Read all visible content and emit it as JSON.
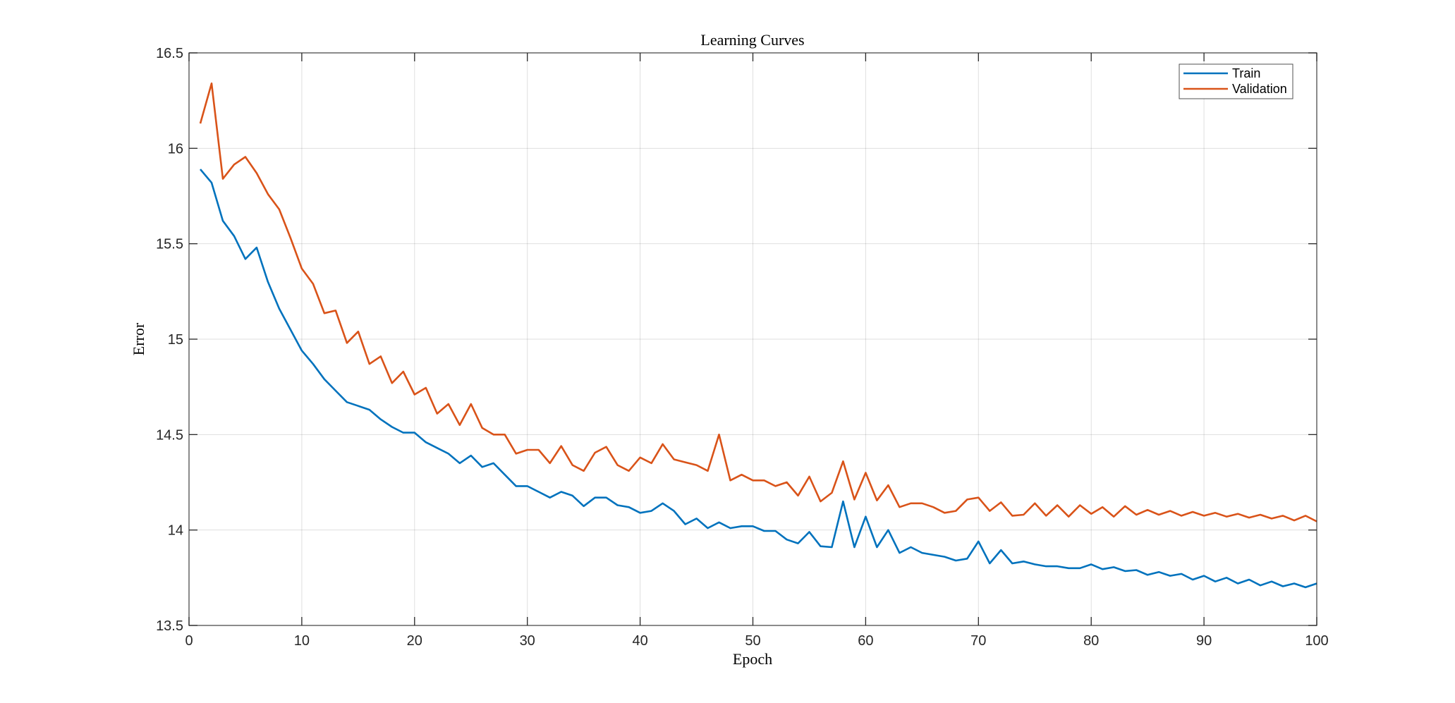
{
  "chart_data": {
    "type": "line",
    "title": "Learning Curves",
    "xlabel": "Epoch",
    "ylabel": "Error",
    "xlim": [
      0,
      100
    ],
    "ylim": [
      13.5,
      16.5
    ],
    "xticks": [
      0,
      10,
      20,
      30,
      40,
      50,
      60,
      70,
      80,
      90,
      100
    ],
    "yticks": [
      13.5,
      14,
      14.5,
      15,
      15.5,
      16,
      16.5
    ],
    "ytick_labels": [
      "13.5",
      "14",
      "14.5",
      "15",
      "15.5",
      "16",
      "16.5"
    ],
    "grid": true,
    "legend_position": "top-right",
    "x": [
      1,
      2,
      3,
      4,
      5,
      6,
      7,
      8,
      9,
      10,
      11,
      12,
      13,
      14,
      15,
      16,
      17,
      18,
      19,
      20,
      21,
      22,
      23,
      24,
      25,
      26,
      27,
      28,
      29,
      30,
      31,
      32,
      33,
      34,
      35,
      36,
      37,
      38,
      39,
      40,
      41,
      42,
      43,
      44,
      45,
      46,
      47,
      48,
      49,
      50,
      51,
      52,
      53,
      54,
      55,
      56,
      57,
      58,
      59,
      60,
      61,
      62,
      63,
      64,
      65,
      66,
      67,
      68,
      69,
      70,
      71,
      72,
      73,
      74,
      75,
      76,
      77,
      78,
      79,
      80,
      81,
      82,
      83,
      84,
      85,
      86,
      87,
      88,
      89,
      90,
      91,
      92,
      93,
      94,
      95,
      96,
      97,
      98,
      99,
      100
    ],
    "series": [
      {
        "name": "Train",
        "color": "#0072BD",
        "values": [
          15.89,
          15.82,
          15.62,
          15.54,
          15.42,
          15.48,
          15.3,
          15.16,
          15.05,
          14.94,
          14.87,
          14.79,
          14.73,
          14.67,
          14.65,
          14.63,
          14.58,
          14.54,
          14.51,
          14.51,
          14.46,
          14.43,
          14.4,
          14.35,
          14.39,
          14.33,
          14.35,
          14.29,
          14.23,
          14.23,
          14.2,
          14.17,
          14.2,
          14.18,
          14.125,
          14.17,
          14.17,
          14.13,
          14.12,
          14.09,
          14.1,
          14.14,
          14.1,
          14.03,
          14.06,
          14.01,
          14.04,
          14.01,
          14.02,
          14.02,
          13.995,
          13.995,
          13.95,
          13.93,
          13.99,
          13.915,
          13.91,
          14.15,
          13.91,
          14.07,
          13.91,
          14.0,
          13.88,
          13.91,
          13.88,
          13.87,
          13.86,
          13.84,
          13.85,
          13.94,
          13.825,
          13.895,
          13.825,
          13.835,
          13.82,
          13.81,
          13.81,
          13.8,
          13.8,
          13.82,
          13.795,
          13.805,
          13.785,
          13.79,
          13.765,
          13.78,
          13.76,
          13.77,
          13.74,
          13.76,
          13.73,
          13.75,
          13.72,
          13.74,
          13.71,
          13.73,
          13.705,
          13.72,
          13.7,
          13.72
        ]
      },
      {
        "name": "Validation",
        "color": "#D95319",
        "values": [
          16.13,
          16.34,
          15.84,
          15.915,
          15.955,
          15.87,
          15.76,
          15.68,
          15.53,
          15.37,
          15.29,
          15.136,
          15.15,
          14.98,
          15.04,
          14.87,
          14.91,
          14.77,
          14.83,
          14.71,
          14.745,
          14.61,
          14.66,
          14.55,
          14.66,
          14.535,
          14.5,
          14.5,
          14.4,
          14.42,
          14.42,
          14.35,
          14.44,
          14.34,
          14.31,
          14.405,
          14.436,
          14.34,
          14.31,
          14.38,
          14.35,
          14.45,
          14.37,
          14.355,
          14.34,
          14.31,
          14.5,
          14.26,
          14.29,
          14.26,
          14.26,
          14.23,
          14.25,
          14.18,
          14.28,
          14.15,
          14.195,
          14.36,
          14.16,
          14.3,
          14.155,
          14.235,
          14.12,
          14.14,
          14.14,
          14.12,
          14.09,
          14.1,
          14.16,
          14.17,
          14.1,
          14.145,
          14.075,
          14.08,
          14.14,
          14.075,
          14.13,
          14.07,
          14.13,
          14.085,
          14.12,
          14.07,
          14.125,
          14.08,
          14.105,
          14.08,
          14.1,
          14.075,
          14.095,
          14.075,
          14.09,
          14.07,
          14.085,
          14.065,
          14.08,
          14.06,
          14.075,
          14.05,
          14.075,
          14.045
        ]
      }
    ]
  }
}
